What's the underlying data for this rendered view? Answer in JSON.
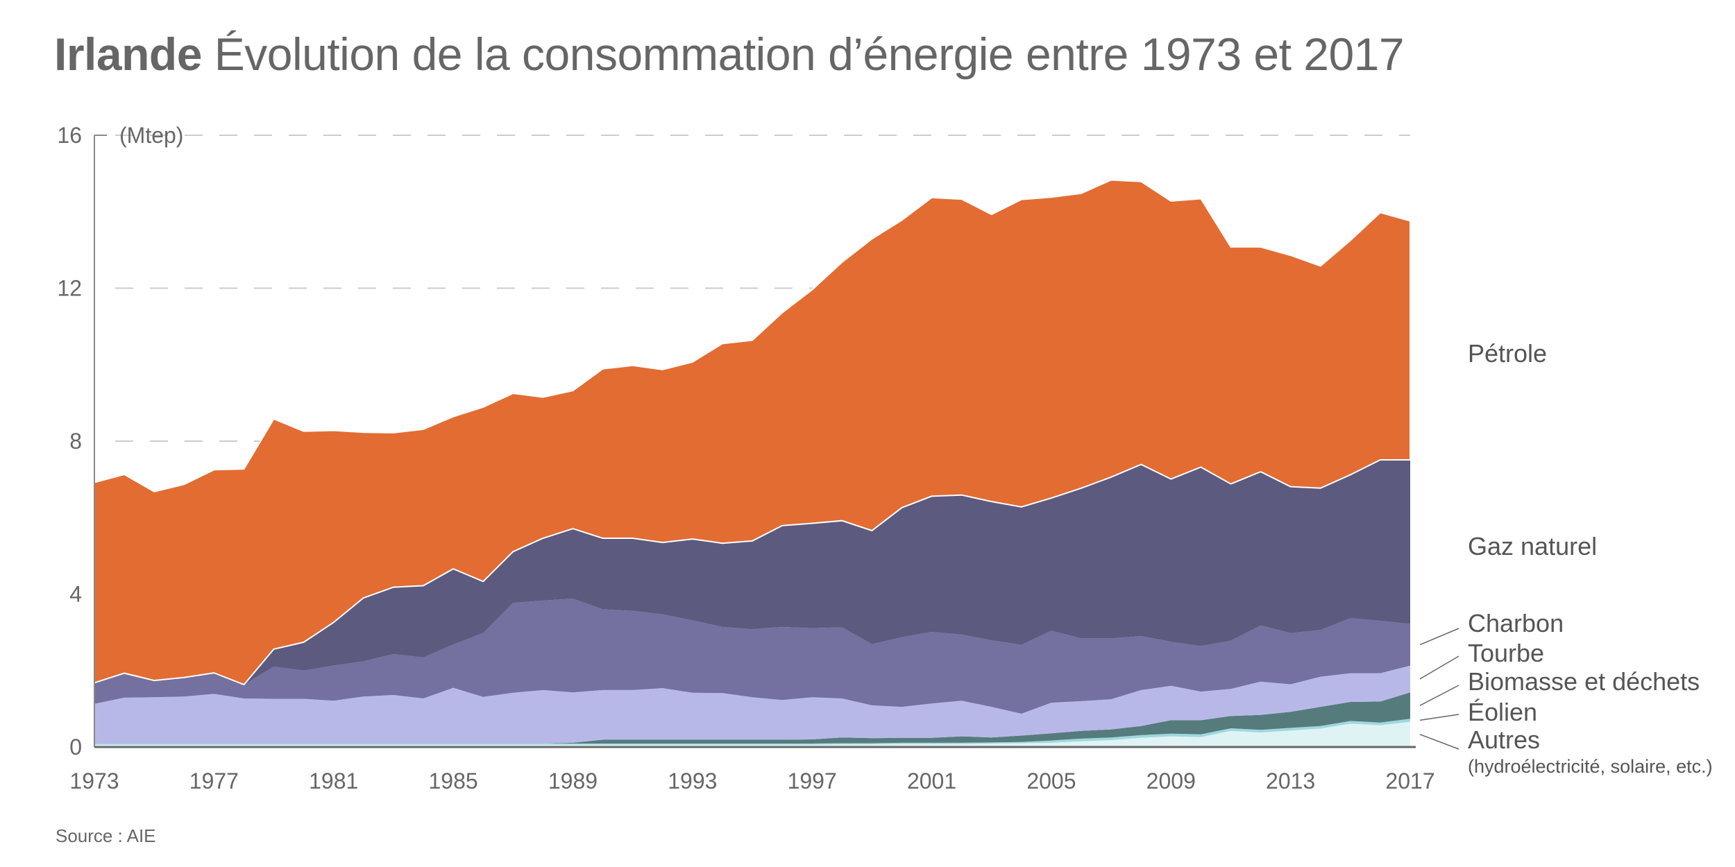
{
  "title": {
    "bold": "Irlande",
    "rest": "Évolution de la consommation d’énergie entre 1973 et 2017"
  },
  "source": "Source : AIE",
  "chart_data": {
    "type": "area",
    "stacked": true,
    "title": "Irlande Évolution de la consommation d’énergie entre 1973 et 2017",
    "ylabel": "(Mtep)",
    "xlabel": "",
    "ylim": [
      0,
      16
    ],
    "xlim": [
      1973,
      2017
    ],
    "yticks": [
      "0",
      "4",
      "8",
      "12",
      "16"
    ],
    "xticks": [
      "1973",
      "1977",
      "1981",
      "1985",
      "1989",
      "1993",
      "1997",
      "2001",
      "2005",
      "2009",
      "2013",
      "2017"
    ],
    "grid": "dashed horizontal lines at 8, 12, 16",
    "legend": "right, direct labels with leader lines",
    "x": [
      1973,
      1974,
      1975,
      1976,
      1977,
      1978,
      1979,
      1980,
      1981,
      1982,
      1983,
      1984,
      1985,
      1986,
      1987,
      1988,
      1989,
      1990,
      1991,
      1992,
      1993,
      1994,
      1995,
      1996,
      1997,
      1998,
      1999,
      2000,
      2001,
      2002,
      2003,
      2004,
      2005,
      2006,
      2007,
      2008,
      2009,
      2010,
      2011,
      2012,
      2013,
      2014,
      2015,
      2016,
      2017
    ],
    "series": [
      {
        "name": "Autres",
        "note": "(hydroélectricité, solaire, etc.)",
        "color": "#dff3f5",
        "values": [
          0.06,
          0.06,
          0.06,
          0.06,
          0.06,
          0.06,
          0.06,
          0.06,
          0.06,
          0.06,
          0.06,
          0.06,
          0.06,
          0.06,
          0.06,
          0.06,
          0.06,
          0.06,
          0.06,
          0.06,
          0.06,
          0.06,
          0.06,
          0.06,
          0.06,
          0.07,
          0.07,
          0.08,
          0.08,
          0.08,
          0.09,
          0.1,
          0.11,
          0.15,
          0.18,
          0.24,
          0.28,
          0.26,
          0.42,
          0.38,
          0.43,
          0.48,
          0.61,
          0.57,
          0.66
        ]
      },
      {
        "name": "Éolien",
        "color": "#9fd8e0",
        "values": [
          0.03,
          0.03,
          0.03,
          0.03,
          0.03,
          0.03,
          0.03,
          0.03,
          0.03,
          0.03,
          0.03,
          0.03,
          0.03,
          0.03,
          0.03,
          0.03,
          0.03,
          0.03,
          0.03,
          0.03,
          0.03,
          0.03,
          0.03,
          0.03,
          0.03,
          0.03,
          0.03,
          0.03,
          0.03,
          0.03,
          0.03,
          0.03,
          0.06,
          0.07,
          0.07,
          0.07,
          0.07,
          0.07,
          0.07,
          0.07,
          0.07,
          0.07,
          0.07,
          0.07,
          0.08
        ]
      },
      {
        "name": "Biomasse et déchets",
        "color": "#567b7d",
        "values": [
          0,
          0,
          0,
          0,
          0,
          0,
          0,
          0,
          0,
          0,
          0,
          0,
          0,
          0,
          0,
          0,
          0.02,
          0.1,
          0.1,
          0.1,
          0.1,
          0.1,
          0.1,
          0.1,
          0.11,
          0.15,
          0.13,
          0.13,
          0.13,
          0.17,
          0.13,
          0.17,
          0.19,
          0.2,
          0.21,
          0.24,
          0.35,
          0.37,
          0.32,
          0.39,
          0.42,
          0.5,
          0.5,
          0.55,
          0.69
        ]
      },
      {
        "name": "Tourbe",
        "color": "#b8b8e8",
        "values": [
          1.04,
          1.2,
          1.21,
          1.23,
          1.3,
          1.18,
          1.17,
          1.17,
          1.12,
          1.23,
          1.27,
          1.18,
          1.46,
          1.22,
          1.33,
          1.4,
          1.32,
          1.3,
          1.3,
          1.35,
          1.23,
          1.22,
          1.11,
          1.04,
          1.1,
          1.02,
          0.86,
          0.81,
          0.9,
          0.93,
          0.8,
          0.57,
          0.8,
          0.78,
          0.79,
          0.94,
          0.9,
          0.75,
          0.71,
          0.87,
          0.72,
          0.79,
          0.75,
          0.74,
          0.7
        ]
      },
      {
        "name": "Charbon",
        "color": "#74709f",
        "values": [
          0.55,
          0.64,
          0.44,
          0.5,
          0.55,
          0.36,
          0.84,
          0.74,
          0.92,
          0.92,
          1.07,
          1.07,
          1.13,
          1.67,
          2.35,
          2.34,
          2.45,
          2.11,
          2.07,
          1.93,
          1.89,
          1.73,
          1.78,
          1.91,
          1.81,
          1.86,
          1.6,
          1.82,
          1.87,
          1.73,
          1.74,
          1.8,
          1.88,
          1.64,
          1.59,
          1.41,
          1.15,
          1.19,
          1.26,
          1.47,
          1.34,
          1.22,
          1.44,
          1.37,
          1.09
        ]
      },
      {
        "name": "Gaz naturel",
        "color": "#5d5a80",
        "values": [
          0,
          0,
          0,
          0,
          0,
          0,
          0.46,
          0.74,
          1.13,
          1.66,
          1.75,
          1.88,
          1.98,
          1.35,
          1.34,
          1.63,
          1.83,
          1.86,
          1.9,
          1.88,
          2.13,
          2.19,
          2.31,
          2.65,
          2.74,
          2.79,
          2.97,
          3.39,
          3.55,
          3.65,
          3.63,
          3.61,
          3.47,
          3.93,
          4.22,
          4.49,
          4.26,
          4.68,
          4.1,
          4.02,
          3.83,
          3.71,
          3.75,
          4.21,
          4.29
        ]
      },
      {
        "name": "Pétrole",
        "color": "#e36c33",
        "values": [
          5.24,
          5.2,
          4.94,
          5.05,
          5.31,
          5.64,
          6.02,
          5.52,
          5.02,
          4.33,
          4.04,
          4.09,
          3.98,
          4.56,
          4.14,
          3.69,
          3.61,
          4.43,
          4.52,
          4.52,
          4.63,
          5.22,
          5.25,
          5.57,
          6.11,
          6.76,
          7.63,
          7.52,
          7.81,
          7.74,
          7.51,
          8.04,
          7.87,
          7.71,
          7.77,
          7.4,
          7.27,
          7.02,
          6.2,
          5.88,
          6.05,
          5.81,
          6.13,
          6.47,
          6.25
        ]
      }
    ]
  }
}
